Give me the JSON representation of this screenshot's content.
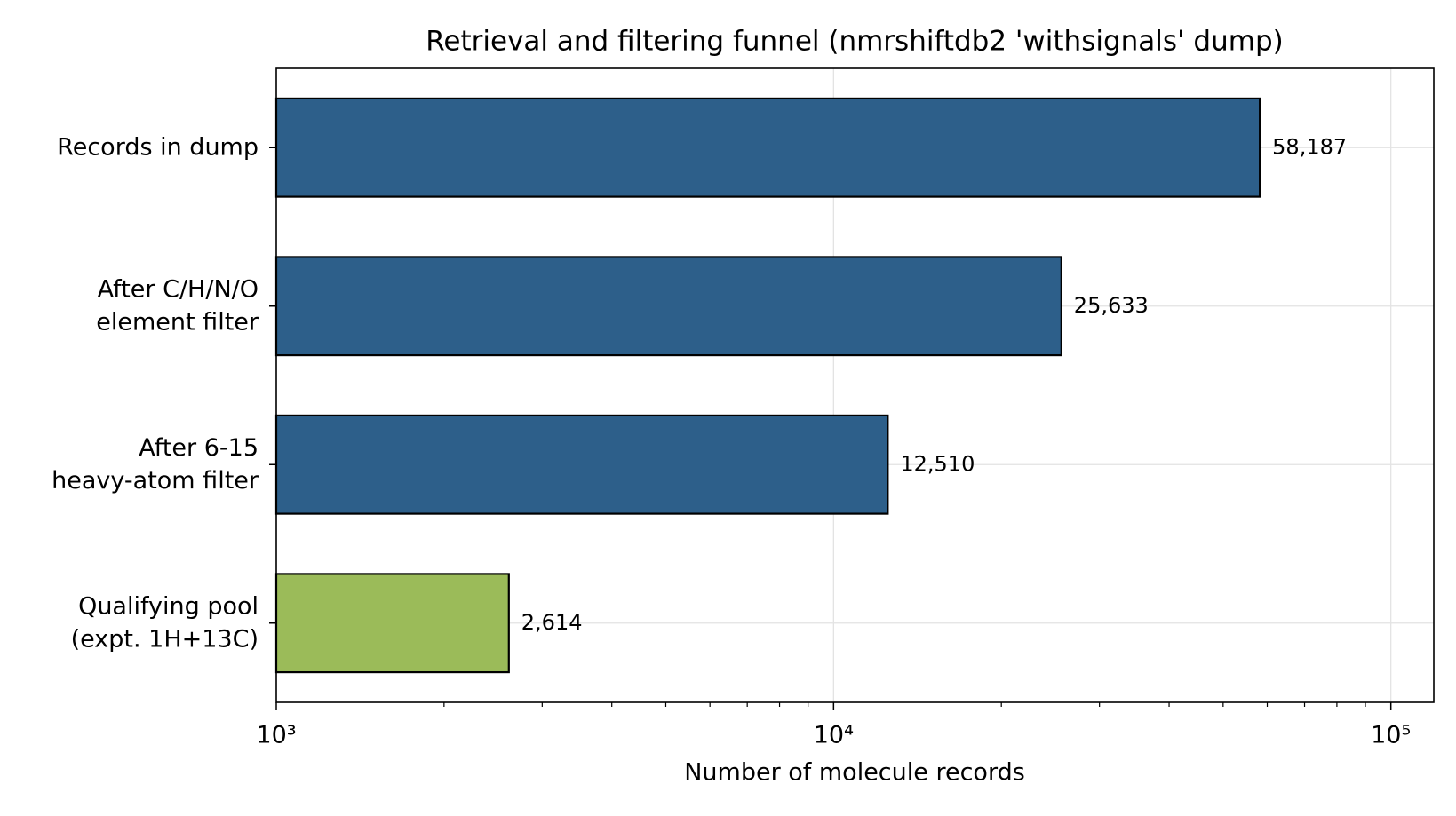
{
  "chart_data": {
    "type": "barh",
    "title": "Retrieval and filtering funnel (nmrshiftdb2 'withsignals' dump)",
    "x_label": "Number of molecule records",
    "categories": [
      [
        "Records in dump"
      ],
      [
        "After C/H/N/O",
        "element filter"
      ],
      [
        "After 6-15",
        "heavy-atom filter"
      ],
      [
        "Qualifying pool",
        "(expt. 1H+13C)"
      ]
    ],
    "values": [
      58187,
      25633,
      12510,
      2614
    ],
    "value_labels": [
      "58,187",
      "25,633",
      "12,510",
      "2,614"
    ],
    "colors": [
      "#2d5f8a",
      "#2d5f8a",
      "#2d5f8a",
      "#9bbb59"
    ],
    "edge_color": "#000000",
    "x_scale": "log",
    "xlim": [
      1000,
      119400
    ],
    "xticks": [
      {
        "value": 1000,
        "label": "10³"
      },
      {
        "value": 10000,
        "label": "10⁴"
      },
      {
        "value": 100000,
        "label": "10⁵"
      }
    ],
    "xminor_ticks": [
      2000,
      3000,
      4000,
      5000,
      6000,
      7000,
      8000,
      9000,
      20000,
      30000,
      40000,
      50000,
      60000,
      70000,
      80000,
      90000
    ],
    "grid": true
  }
}
